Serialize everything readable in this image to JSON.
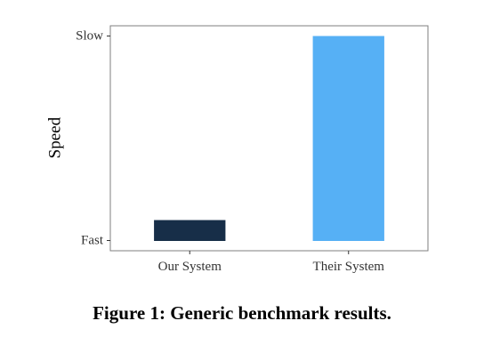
{
  "caption": "Figure 1: Generic benchmark results.",
  "chart_data": {
    "type": "bar",
    "categories": [
      "Our System",
      "Their System"
    ],
    "values": [
      0.1,
      1.0
    ],
    "ylabel": "Speed",
    "xlabel": "",
    "y_ticks": [
      {
        "value": 0,
        "label": "Fast"
      },
      {
        "value": 1,
        "label": "Slow"
      }
    ],
    "ylim": [
      -0.05,
      1.05
    ],
    "grid": false,
    "legend": "none",
    "colors": [
      "#172e48",
      "#56b0f5"
    ]
  }
}
